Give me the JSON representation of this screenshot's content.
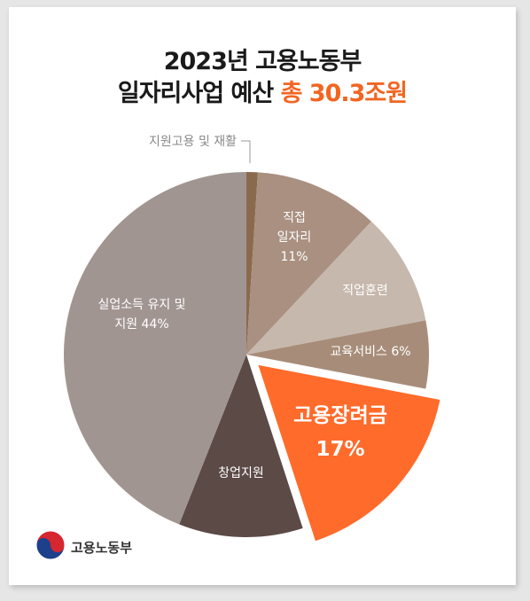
{
  "title": {
    "line1": "2023년 고용노동부",
    "line2_prefix": "일자리사업 예산 ",
    "line2_highlight": "총 30.3조원"
  },
  "logo_text": "고용노동부",
  "colors": {
    "accent": "#f26522",
    "title_text": "#1a1a1a"
  },
  "chart_data": {
    "type": "pie",
    "title": "2023년 고용노동부 일자리사업 예산 총 30.3조원",
    "total": "30.3조원",
    "legend": "none",
    "slices": [
      {
        "label": "지원고용 및 재활",
        "value": 1,
        "color": "#8a6a4d",
        "display": [
          "지원고용 및 재활"
        ]
      },
      {
        "label": "직접 일자리",
        "value": 11,
        "color": "#a99081",
        "display": [
          "직접",
          "일자리",
          "11%"
        ]
      },
      {
        "label": "직업훈련",
        "value": 10,
        "color": "#c6b8ad",
        "display": [
          "직업훈련"
        ]
      },
      {
        "label": "교육서비스",
        "value": 6,
        "color": "#a78d79",
        "display": [
          "교육서비스 6%"
        ]
      },
      {
        "label": "고용장려금",
        "value": 17,
        "color": "#ff6b2b",
        "display": [
          "고용장려금",
          "17%"
        ],
        "highlight": true
      },
      {
        "label": "창업지원",
        "value": 11,
        "color": "#5c4a47",
        "display": [
          "창업지원"
        ]
      },
      {
        "label": "실업소득 유지 및 지원",
        "value": 44,
        "color": "#a19592",
        "display": [
          "실업소득 유지 및",
          "지원 44%"
        ]
      }
    ]
  }
}
